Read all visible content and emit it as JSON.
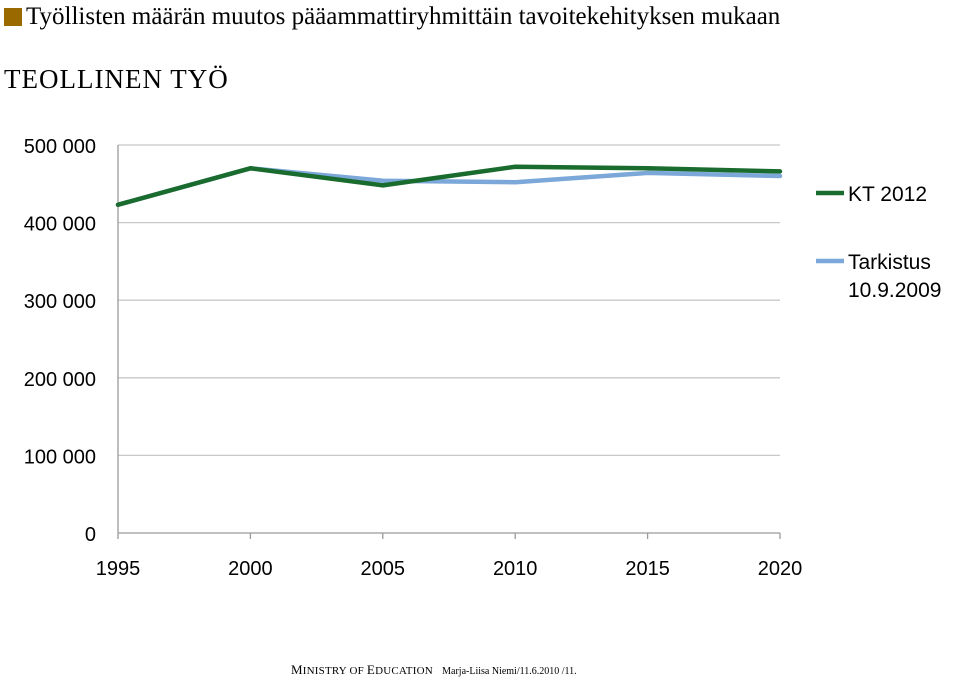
{
  "header": {
    "title": "Työllisten määrän muutos pääammattiryhmittäin tavoitekehityksen mukaan",
    "subtitle": "TEOLLINEN TYÖ",
    "bullet_color": "#9a6a00"
  },
  "chart_data": {
    "type": "line",
    "categories": [
      "1995",
      "2000",
      "2005",
      "2010",
      "2015",
      "2020"
    ],
    "series": [
      {
        "name": "KT 2012",
        "color": "#1a6b2e",
        "values": [
          423000,
          470000,
          448000,
          472000,
          470000,
          466000
        ]
      },
      {
        "name": "Tarkistus 10.9.2009",
        "color": "#7ba7d9",
        "values": [
          423000,
          470000,
          454000,
          452000,
          464000,
          460000
        ]
      }
    ],
    "ylim": [
      0,
      500000
    ],
    "y_ticks": [
      "0",
      "100 000",
      "200 000",
      "300 000",
      "400 000",
      "500 000"
    ],
    "grid": true,
    "legend_position": "right"
  },
  "footer": {
    "org_first": "M",
    "org_rest": "INISTRY OF ",
    "org2_first": "E",
    "org2_rest": "DUCATION",
    "author": "Marja-Liisa Niemi/11.6.2010 /11."
  }
}
